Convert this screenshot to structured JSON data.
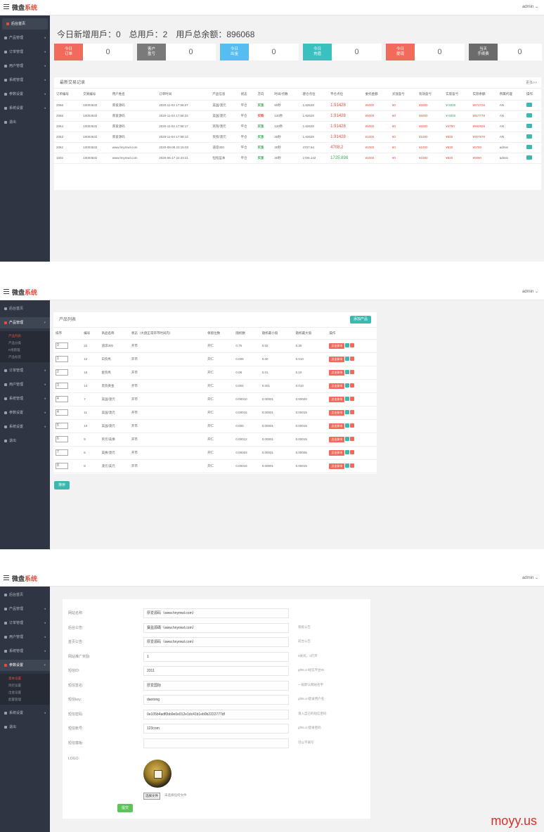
{
  "brand": {
    "prefix": "微盘",
    "accent": "系统"
  },
  "admin": "admin ⌄",
  "sidebar": {
    "items": [
      "后台首页",
      "产品管理",
      "订单管理",
      "用户管理",
      "系统管理",
      "参数设置",
      "系统设置",
      "退出"
    ],
    "product_sub": [
      "产品列表",
      "产品分类",
      "K线管理",
      "产品标签"
    ],
    "param_sub": [
      "基本设置",
      "风控设置",
      "出金设置",
      "配置管理"
    ]
  },
  "dashboard": {
    "title": "今日新增用戶：0　总用戶：2　用戶总余额：896068",
    "stats": [
      {
        "label": "今日\n订单",
        "value": "0",
        "color": "#f26a5b"
      },
      {
        "label": "客户\n盈亏",
        "value": "0",
        "color": "#7a7a7a"
      },
      {
        "label": "今日\n出金",
        "value": "0",
        "color": "#55bdf0"
      },
      {
        "label": "今日\n充值",
        "value": "0",
        "color": "#3bc0c0"
      },
      {
        "label": "今日\n提现",
        "value": "0",
        "color": "#f26a5b"
      },
      {
        "label": "当天\n手续费",
        "value": "0",
        "color": "#6b6b6b"
      }
    ],
    "recent": {
      "title": "最新交易记录",
      "more": "更多>>",
      "columns": [
        "订单编号",
        "交易编号",
        "用户姓名",
        "订单时间",
        "产品信息",
        "状态",
        "方向",
        "时间/点数",
        "建仓点位",
        "平仓点位",
        "委托金额",
        "买涨盈亏",
        "有效盈亏",
        "实际盈亏",
        "实际余额",
        "所属代理",
        "操作"
      ],
      "rows": [
        [
          "2066",
          "10003632",
          "厚爱源码",
          "2020-11-04 17:58:27",
          "美国/澳元",
          "平仓",
          "买涨",
          "60秒",
          "1.82628",
          "1.91428",
          "¥5000",
          "¥0",
          "¥5000",
          "¥-5000",
          "¥872728",
          "AN"
        ],
        [
          "2065",
          "10003632",
          "厚爱源码",
          "2020-11-04 17:58:22",
          "美国/澳元",
          "平仓",
          "买跌",
          "120秒",
          "1.82628",
          "1.91428",
          "¥5000",
          "¥0",
          "¥5000",
          "¥-5000",
          "¥917778",
          "AN"
        ],
        [
          "2064",
          "10003632",
          "厚爱源码",
          "2020-11-04 17:58:17",
          "英镑/澳元",
          "平仓",
          "买涨",
          "120秒",
          "1.82628",
          "1.91428",
          "¥5000",
          "¥0",
          "¥5000",
          "¥4750",
          "¥992928",
          "AN"
        ],
        [
          "2063",
          "10003632",
          "厚爱源码",
          "2020-11-04 17:58:14",
          "英镑/澳元",
          "平仓",
          "买涨",
          "30秒",
          "1.82628",
          "1.91428",
          "¥1000",
          "¥0",
          "¥1000",
          "¥920",
          "¥007878",
          "AN"
        ],
        [
          "2062",
          "10003632",
          "www.hnymwl.com",
          "2020-08-08 23:15:03",
          "道琼300",
          "平仓",
          "买涨",
          "30秒",
          "4707.64",
          "4708.2",
          "¥1000",
          "¥0",
          "¥1000",
          "¥830",
          "¥0790",
          "admin"
        ],
        [
          "1602",
          "10003632",
          "www.hnymwl.com",
          "2020-06-17 22:43:41",
          "恒指蓝本",
          "平仓",
          "买涨",
          "30秒",
          "1726.142",
          "1725.898",
          "¥1000",
          "¥0",
          "¥1000",
          "¥920",
          "¥0090",
          "admin"
        ]
      ]
    }
  },
  "products": {
    "title": "产品列表",
    "add_button": "添加产品",
    "sort_button": "排序",
    "columns": [
      "排序",
      "编号",
      "商品名称",
      "状态（大盘正常开市时间内）",
      "保留位数",
      "随机数",
      "随机最小值",
      "随机最大值",
      "操作"
    ],
    "op_label": "点击休市",
    "rows": [
      [
        "0",
        "22",
        "道琼300",
        "开市",
        "开仁",
        "0.75",
        "0.02",
        "0.30"
      ],
      [
        "1",
        "12",
        "白狗馬",
        "开市",
        "开仁",
        "0.009",
        "0.00",
        "0.010"
      ],
      [
        "2",
        "16",
        "金狗馬",
        "开市",
        "开仁",
        "0.08",
        "0.01",
        "0.10"
      ],
      [
        "3",
        "14",
        "黑狗黄金",
        "开市",
        "开仁",
        "0.004",
        "0.001",
        "0.010"
      ],
      [
        "4",
        "7",
        "美国/澳元",
        "开市",
        "开仁",
        "0.00010",
        "0.00001",
        "0.00020"
      ],
      [
        "4",
        "11",
        "美国/澳元",
        "开市",
        "开仁",
        "0.00015",
        "0.00001",
        "0.00015"
      ],
      [
        "5",
        "10",
        "美国/澳元",
        "开市",
        "开仁",
        "0.000",
        "0.00001",
        "0.00015"
      ],
      [
        "6",
        "9",
        "英元/美换",
        "开市",
        "开仁",
        "0.00012",
        "0.00001",
        "0.00015"
      ],
      [
        "7",
        "6",
        "美换/澳元",
        "开市",
        "开仁",
        "0.00003",
        "0.00001",
        "0.00005"
      ],
      [
        "8",
        "8",
        "澳元/美元",
        "开市",
        "开仁",
        "0.00015",
        "0.00001",
        "0.00015"
      ]
    ]
  },
  "settings": {
    "rows": [
      {
        "label": "网站名称:",
        "value": "厚爱源码（www.hnymwl.com）",
        "hint": ""
      },
      {
        "label": "后台公告:",
        "value": "寶盈源碼（www.hnymwl.com）",
        "hint": "系统公告"
      },
      {
        "label": "首页公告:",
        "value": "厚爱源码（www.hnymwl.com）",
        "hint": "前台公告"
      },
      {
        "label": "网站推广奖励:",
        "value": "1",
        "hint": "0关闭，1打开"
      },
      {
        "label": "短信ID:",
        "value": "3311",
        "hint": "gf06.cn短信平台ID"
      },
      {
        "label": "短信签名:",
        "value": "厚爱国际",
        "hint": "一般默认网站名字"
      },
      {
        "label": "短信key:",
        "value": "daotong",
        "hint": "gf06.cn登录用户名"
      },
      {
        "label": "短信密码:",
        "value": "0e105b4adf0bb9e0e012e1dc41b1eb0b2222777df",
        "hint": "请入自己的短信密码"
      },
      {
        "label": "短信帐号:",
        "value": "123com",
        "hint": "gf06.cn登录密码"
      },
      {
        "label": "短信模板:",
        "value": "",
        "hint": "可以不填写"
      }
    ],
    "logo_label": "LOGO:",
    "file_button": "选择文件",
    "file_text": "未选择任何文件",
    "submit": "提交"
  },
  "watermark": "moyy.us"
}
